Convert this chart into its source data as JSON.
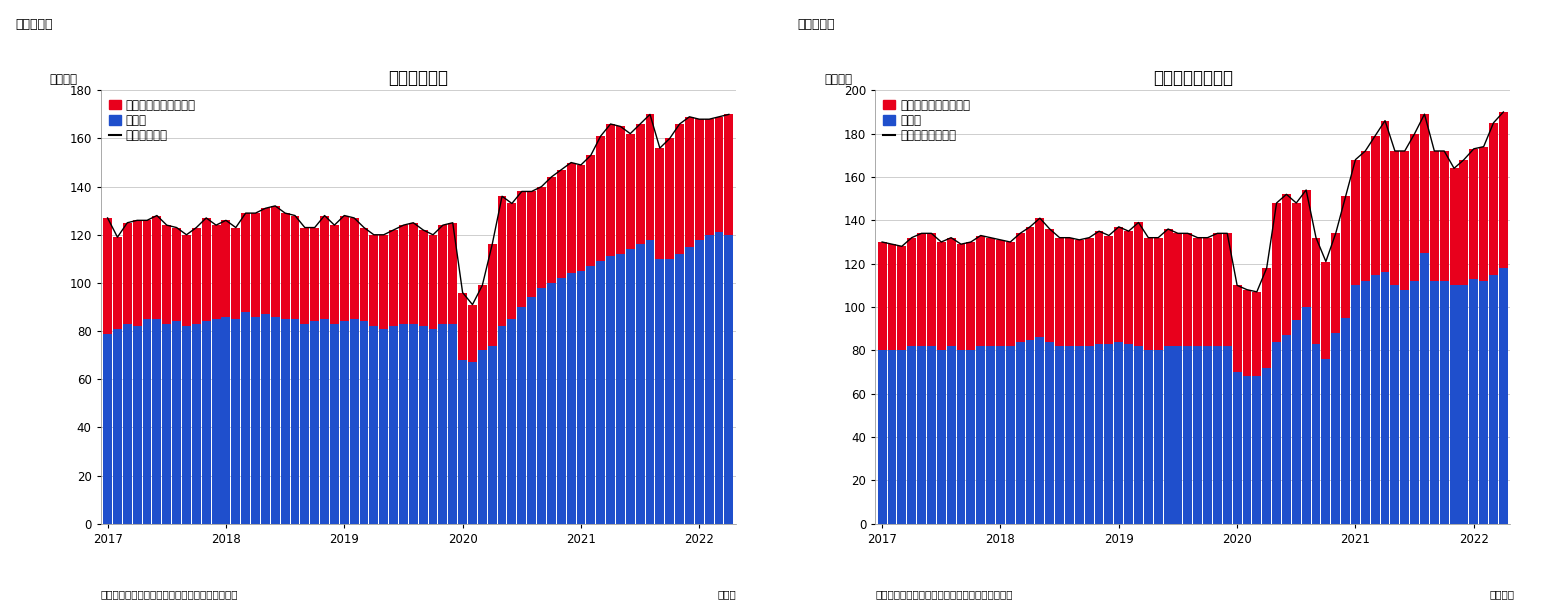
{
  "chart1": {
    "title": "住宅着工件数",
    "ylabel": "（万件）",
    "ylim": [
      0,
      180
    ],
    "yticks": [
      0,
      20,
      40,
      60,
      80,
      100,
      120,
      140,
      160,
      180
    ],
    "legend_label_red": "集合住宅（二戸以上）",
    "legend_label_blue": "戸建て",
    "legend_label_line": "住宅着工件数",
    "source": "（資料）センサス局よりニッセイ基礎研究所作成",
    "monthly_note": "（月次",
    "fig_label": "（図表１）",
    "blue": [
      79,
      81,
      83,
      82,
      85,
      85,
      83,
      84,
      82,
      83,
      84,
      85,
      86,
      85,
      88,
      86,
      87,
      86,
      85,
      85,
      83,
      84,
      85,
      83,
      84,
      85,
      84,
      82,
      81,
      82,
      83,
      83,
      82,
      81,
      83,
      83,
      68,
      67,
      72,
      74,
      82,
      85,
      90,
      94,
      98,
      100,
      102,
      104,
      105,
      107,
      109,
      111,
      112,
      114,
      116,
      118,
      110,
      110,
      112,
      115,
      118,
      120,
      121,
      120
    ],
    "red": [
      48,
      38,
      42,
      44,
      41,
      43,
      41,
      39,
      38,
      40,
      43,
      39,
      40,
      38,
      41,
      43,
      44,
      46,
      44,
      43,
      40,
      39,
      43,
      41,
      44,
      42,
      39,
      38,
      39,
      40,
      41,
      42,
      40,
      39,
      41,
      42,
      28,
      24,
      27,
      42,
      54,
      48,
      48,
      44,
      42,
      44,
      45,
      46,
      44,
      46,
      52,
      55,
      53,
      48,
      50,
      52,
      46,
      50,
      54,
      54,
      50,
      48,
      48,
      50
    ]
  },
  "chart2": {
    "title": "住宅着工許可件数",
    "ylabel": "（万件）",
    "ylim": [
      0,
      200
    ],
    "yticks": [
      0,
      20,
      40,
      60,
      80,
      100,
      120,
      140,
      160,
      180,
      200
    ],
    "legend_label_red": "集合住宅（二戸以上）",
    "legend_label_blue": "戸建て",
    "legend_label_line": "住宅建築許可件数",
    "source": "（資料）センサス局よりニッセイ基礎研究所作成",
    "monthly_note": "（月次）",
    "fig_label": "（図表２）",
    "blue": [
      80,
      80,
      80,
      82,
      82,
      82,
      80,
      82,
      80,
      80,
      82,
      82,
      82,
      82,
      84,
      85,
      86,
      84,
      82,
      82,
      82,
      82,
      83,
      83,
      84,
      83,
      82,
      80,
      80,
      82,
      82,
      82,
      82,
      82,
      82,
      82,
      70,
      68,
      68,
      72,
      84,
      87,
      94,
      100,
      83,
      76,
      88,
      95,
      110,
      112,
      115,
      116,
      110,
      108,
      112,
      125,
      112,
      112,
      110,
      110,
      113,
      112,
      115,
      118
    ],
    "red": [
      50,
      49,
      48,
      50,
      52,
      52,
      50,
      50,
      49,
      50,
      51,
      50,
      49,
      48,
      50,
      52,
      55,
      52,
      50,
      50,
      49,
      50,
      52,
      50,
      53,
      52,
      57,
      52,
      52,
      54,
      52,
      52,
      50,
      50,
      52,
      52,
      40,
      40,
      39,
      46,
      64,
      65,
      54,
      54,
      49,
      45,
      46,
      56,
      58,
      60,
      64,
      70,
      62,
      64,
      68,
      64,
      60,
      60,
      54,
      58,
      60,
      62,
      70,
      72
    ]
  },
  "color_red": "#e8001c",
  "color_blue": "#1f4fcc",
  "color_line": "#000000",
  "bg_color": "#ffffff",
  "title_fontsize": 12,
  "label_fontsize": 8.5,
  "tick_fontsize": 8.5,
  "source_fontsize": 7.5,
  "fig_label_fontsize": 9,
  "legend_fontsize": 8.5
}
